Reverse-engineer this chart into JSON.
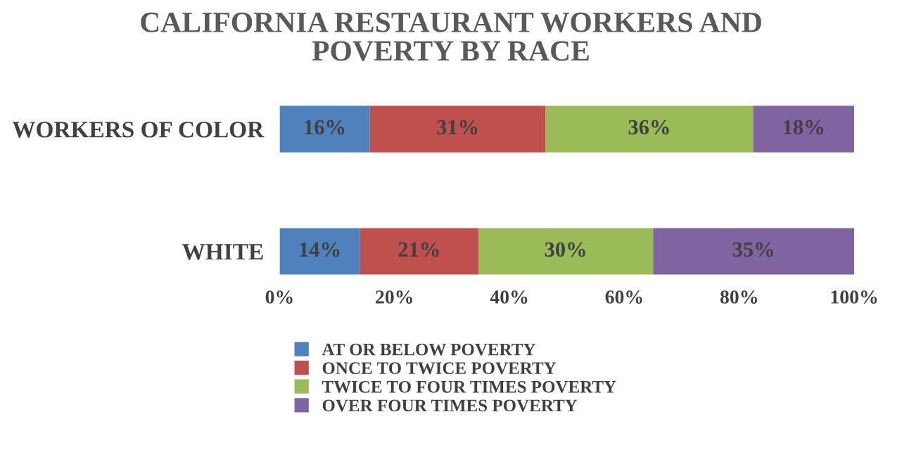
{
  "chart_data": {
    "type": "bar",
    "orientation": "horizontal",
    "stacked": true,
    "title": "CALIFORNIA RESTAURANT WORKERS AND\nPOVERTY BY RACE",
    "categories": [
      "WORKERS OF COLOR",
      "WHITE"
    ],
    "series": [
      {
        "name": "AT OR BELOW POVERTY",
        "color": "#4f81bd",
        "values": [
          15.7,
          14.0
        ],
        "value_labels": [
          "16%",
          "14%"
        ]
      },
      {
        "name": "ONCE TO TWICE POVERTY",
        "color": "#c0504d",
        "values": [
          30.6,
          20.6
        ],
        "value_labels": [
          "31%",
          "21%"
        ]
      },
      {
        "name": "TWICE TO FOUR TIMES POVERTY",
        "color": "#9bbb59",
        "values": [
          36.1,
          30.4
        ],
        "value_labels": [
          "36%",
          "30%"
        ]
      },
      {
        "name": "OVER FOUR TIMES POVERTY",
        "color": "#8064a2",
        "values": [
          17.6,
          35.0
        ],
        "value_labels": [
          "18%",
          "35%"
        ]
      }
    ],
    "xlim": [
      0,
      100
    ],
    "xticks": [
      {
        "value": 0,
        "label": "0%"
      },
      {
        "value": 20,
        "label": "20%"
      },
      {
        "value": 40,
        "label": "40%"
      },
      {
        "value": 60,
        "label": "60%"
      },
      {
        "value": 80,
        "label": "80%"
      },
      {
        "value": 100,
        "label": "100%"
      }
    ],
    "legend": "bottom"
  }
}
